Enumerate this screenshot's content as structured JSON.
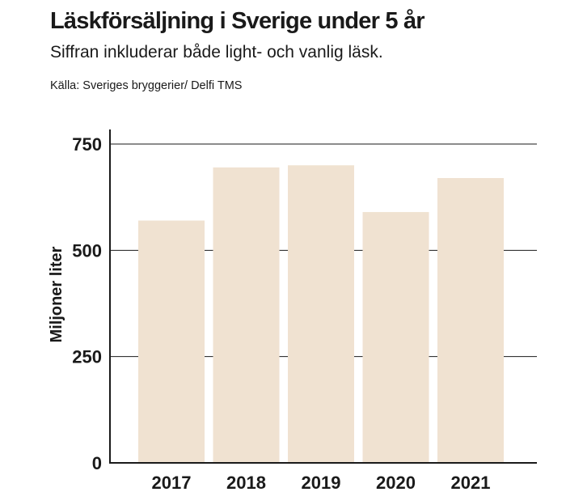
{
  "header": {
    "title": "Läskförsäljning i Sverige under 5 år",
    "subtitle": "Siffran inkluderar både light- och vanlig läsk.",
    "source": "Källa: Sveriges bryggerier/ Delfi TMS"
  },
  "colors": {
    "bar": "#f0e2d1",
    "axis": "#1a1a1a",
    "grid": "#1a1a1a"
  },
  "chart_data": {
    "type": "bar",
    "title": "Läskförsäljning i Sverige under 5 år",
    "subtitle": "Siffran inkluderar både light- och vanlig läsk.",
    "xlabel": "",
    "ylabel": "Miljoner liter",
    "categories": [
      "2017",
      "2018",
      "2019",
      "2020",
      "2021"
    ],
    "values": [
      570,
      695,
      700,
      590,
      670
    ],
    "ylim": [
      0,
      750
    ],
    "yticks": [
      0,
      250,
      500,
      750
    ],
    "ytick_labels": [
      "0",
      "250",
      "500",
      "750"
    ],
    "grid": true,
    "legend": "none"
  }
}
